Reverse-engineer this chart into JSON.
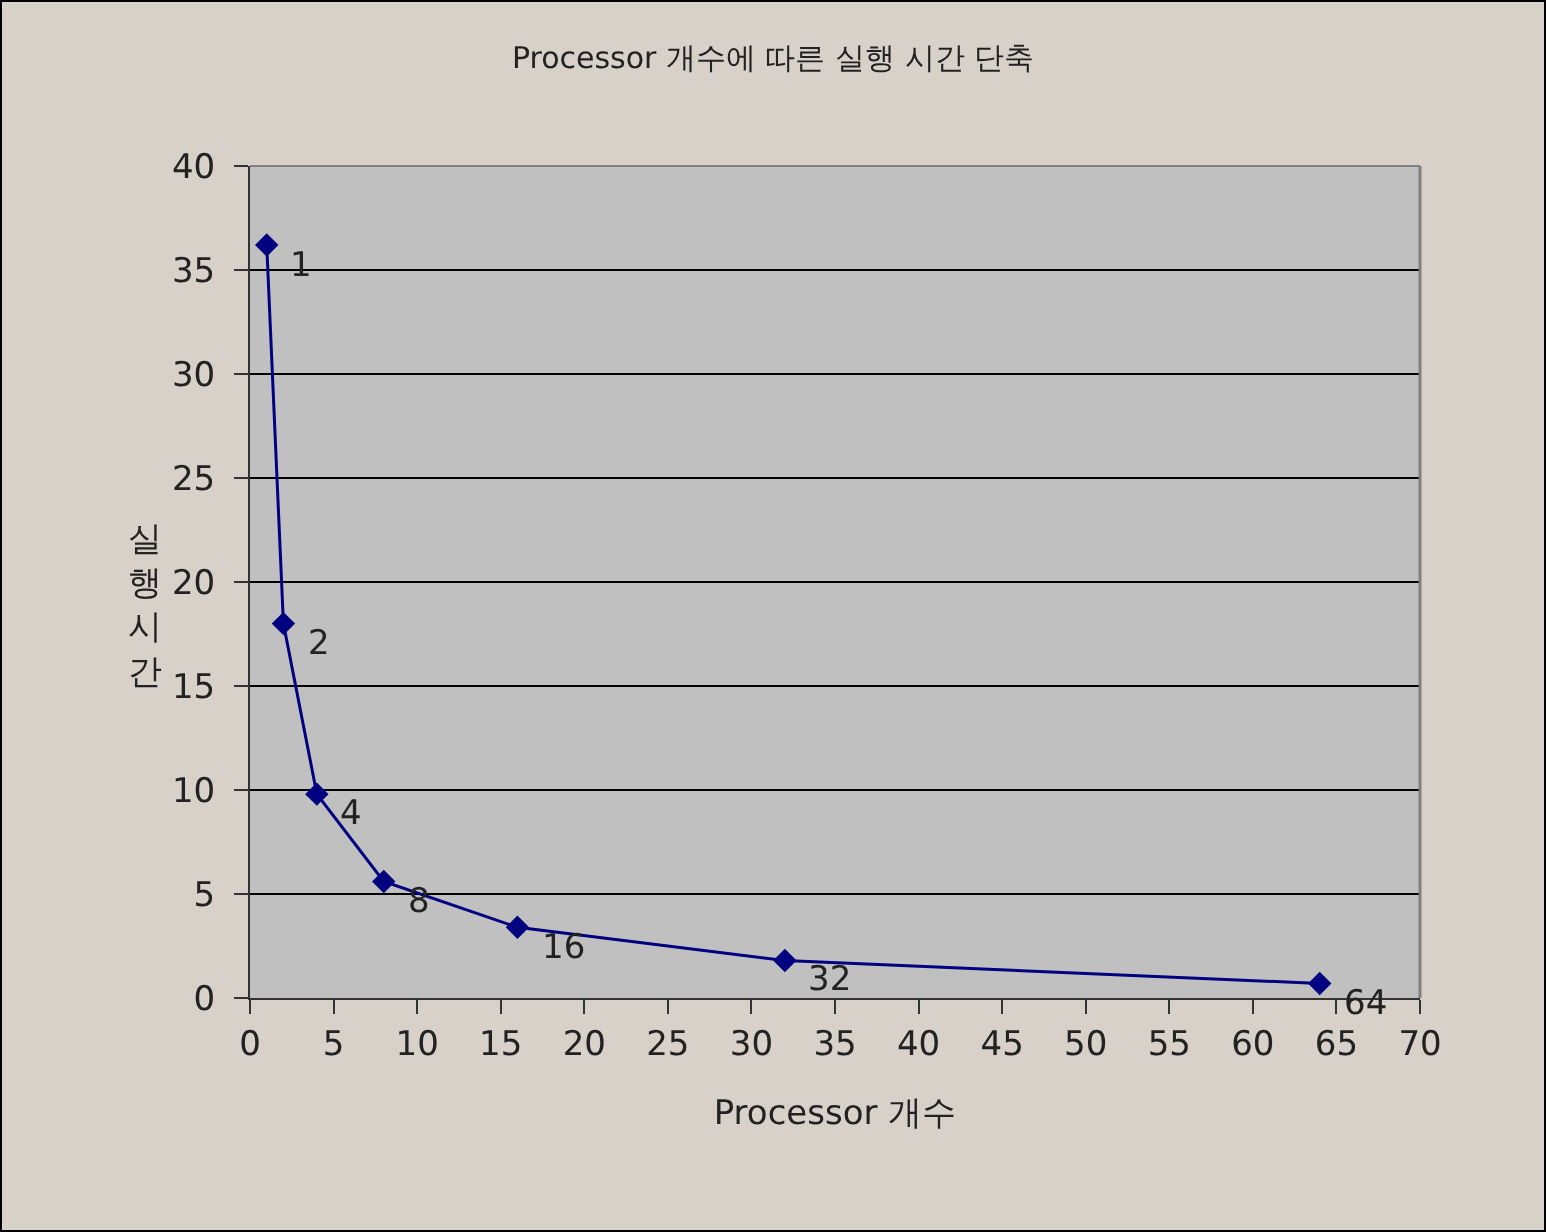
{
  "chart_data": {
    "type": "line",
    "title": "Processor 개수에 따른 실행 시간 단축",
    "xlabel": "Processor 개수",
    "ylabel": "실행시간",
    "x": [
      1,
      2,
      4,
      8,
      16,
      32,
      64
    ],
    "series": [
      {
        "color": "#000080",
        "values": [
          36.2,
          18,
          9.8,
          5.6,
          3.4,
          1.8,
          0.7
        ]
      }
    ],
    "xlim": [
      0,
      70
    ],
    "xticks": [
      0,
      5,
      10,
      15,
      20,
      25,
      30,
      35,
      40,
      45,
      50,
      55,
      60,
      65,
      70
    ],
    "ylim": [
      0,
      40
    ],
    "yticks": [
      0,
      5,
      10,
      15,
      20,
      25,
      30,
      35,
      40
    ],
    "annotations": [
      {
        "text": "1",
        "x": 1,
        "y": 36.2
      },
      {
        "text": "2",
        "x": 2,
        "y": 18
      },
      {
        "text": "4",
        "x": 4,
        "y": 9.8
      },
      {
        "text": "8",
        "x": 8,
        "y": 5.6
      },
      {
        "text": "16",
        "x": 16,
        "y": 3.4
      },
      {
        "text": "32",
        "x": 32,
        "y": 1.8
      },
      {
        "text": "64",
        "x": 64,
        "y": 0.7
      }
    ],
    "grid": "y",
    "legend": false,
    "marker": "diamond",
    "line_style": "solid"
  }
}
